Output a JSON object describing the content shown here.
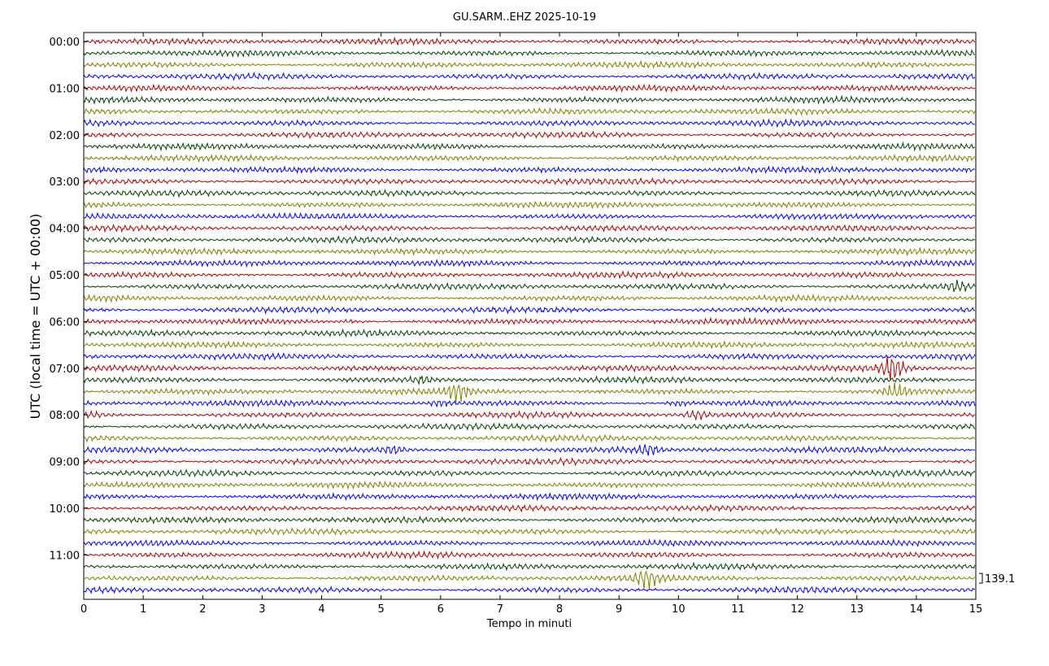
{
  "chart_data": {
    "type": "line",
    "title": "GU.SARM..EHZ 2025-10-19",
    "xlabel": "Tempo in minuti",
    "ylabel": "UTC (local time = UTC + 00:00)",
    "xlim": [
      0,
      15
    ],
    "x_ticks": [
      "0",
      "1",
      "2",
      "3",
      "4",
      "5",
      "6",
      "7",
      "8",
      "9",
      "10",
      "11",
      "12",
      "13",
      "14",
      "15"
    ],
    "y_ticks": [
      "00:00",
      "01:00",
      "02:00",
      "03:00",
      "04:00",
      "05:00",
      "06:00",
      "07:00",
      "08:00",
      "09:00",
      "10:00",
      "11:00"
    ],
    "trace_count": 48,
    "trace_interval_minutes": 15,
    "trace_colors": [
      "#b00000",
      "#004400",
      "#808000",
      "#0000ff"
    ],
    "scale_label": "139.1",
    "grid": true,
    "events": [
      {
        "trace": 21,
        "minute": 14.7,
        "amplitude": 2.0
      },
      {
        "trace": 24,
        "minute": 4.5,
        "amplitude": 1.5
      },
      {
        "trace": 28,
        "minute": 13.6,
        "amplitude": 4.0
      },
      {
        "trace": 29,
        "minute": 5.7,
        "amplitude": 1.4
      },
      {
        "trace": 30,
        "minute": 6.3,
        "amplitude": 2.8
      },
      {
        "trace": 30,
        "minute": 13.65,
        "amplitude": 2.4
      },
      {
        "trace": 31,
        "minute": 6.0,
        "amplitude": 1.4
      },
      {
        "trace": 31,
        "minute": 10.0,
        "amplitude": 1.6
      },
      {
        "trace": 32,
        "minute": 0.2,
        "amplitude": 1.5
      },
      {
        "trace": 32,
        "minute": 10.3,
        "amplitude": 2.0
      },
      {
        "trace": 32,
        "minute": 13.7,
        "amplitude": 2.0
      },
      {
        "trace": 35,
        "minute": 5.2,
        "amplitude": 1.6
      },
      {
        "trace": 35,
        "minute": 9.5,
        "amplitude": 1.8
      },
      {
        "trace": 46,
        "minute": 9.45,
        "amplitude": 2.6
      }
    ]
  }
}
